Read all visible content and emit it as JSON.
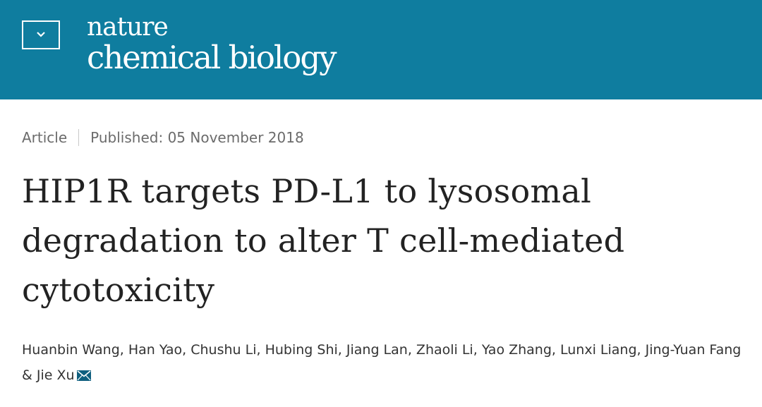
{
  "header": {
    "journal_line1": "nature",
    "journal_line2": "chemical biology",
    "menu_icon": "chevron-down-icon",
    "background_color": "#0f7d9f"
  },
  "article": {
    "type": "Article",
    "published_label": "Published:",
    "published_date": "05 November 2018",
    "title_lines": [
      "HIP1R targets PD-L1 to lysosomal",
      "degradation to alter T cell-mediated",
      "cytotoxicity"
    ],
    "authors": [
      "Huanbin Wang",
      "Han Yao",
      "Chushu Li",
      "Hubing Shi",
      "Jiang Lan",
      "Zhaoli Li",
      "Yao Zhang",
      "Lunxi Liang",
      "Jing-Yuan Fang",
      "Jie Xu"
    ],
    "separators": {
      "comma": ", ",
      "ampersand": " & "
    },
    "corresponding_icon": "mail-icon"
  }
}
